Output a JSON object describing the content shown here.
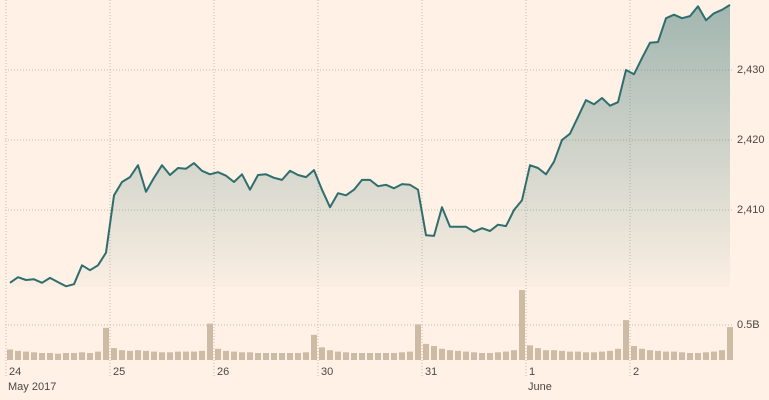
{
  "chart_data": {
    "type": "line",
    "categories": [
      "24",
      null,
      null,
      null,
      null,
      null,
      null,
      null,
      null,
      null,
      null,
      null,
      null,
      "25",
      null,
      null,
      null,
      null,
      null,
      null,
      null,
      null,
      null,
      null,
      null,
      null,
      "26",
      null,
      null,
      null,
      null,
      null,
      null,
      null,
      null,
      null,
      null,
      null,
      null,
      "30",
      null,
      null,
      null,
      null,
      null,
      null,
      null,
      null,
      null,
      null,
      null,
      null,
      "31",
      null,
      null,
      null,
      null,
      null,
      null,
      null,
      null,
      null,
      null,
      null,
      null,
      "1",
      null,
      null,
      null,
      null,
      null,
      null,
      null,
      null,
      null,
      null,
      null,
      null,
      "2",
      null,
      null,
      null,
      null,
      null,
      null,
      null,
      null,
      null,
      null,
      null,
      null
    ],
    "group_labels": [
      "May 2017",
      null,
      null,
      null,
      null,
      null,
      null,
      null,
      null,
      null,
      null,
      null,
      null,
      null,
      null,
      null,
      null,
      null,
      null,
      null,
      null,
      null,
      null,
      null,
      null,
      null,
      null,
      null,
      null,
      null,
      null,
      null,
      null,
      null,
      null,
      null,
      null,
      null,
      null,
      null,
      null,
      null,
      null,
      null,
      null,
      null,
      null,
      null,
      null,
      null,
      null,
      null,
      null,
      null,
      null,
      null,
      null,
      null,
      null,
      null,
      null,
      null,
      null,
      null,
      null,
      "June",
      null,
      null,
      null,
      null,
      null,
      null,
      null,
      null,
      null,
      null,
      null,
      null,
      null,
      null,
      null,
      null,
      null,
      null,
      null,
      null,
      null,
      null,
      null,
      null,
      null
    ],
    "series": [
      {
        "color": "#2f6e6e",
        "values": [
          2399.6,
          2400.4,
          2400.0,
          2400.1,
          2399.6,
          2400.3,
          2399.7,
          2399.1,
          2399.4,
          2402.1,
          2401.4,
          2402.1,
          2403.9,
          2412.1,
          2414.0,
          2414.7,
          2416.4,
          2412.6,
          2414.6,
          2416.4,
          2415.0,
          2416.0,
          2415.9,
          2416.7,
          2415.6,
          2415.1,
          2415.4,
          2414.9,
          2414.0,
          2415.1,
          2412.9,
          2415.0,
          2415.1,
          2414.6,
          2414.3,
          2415.6,
          2415.0,
          2414.7,
          2415.7,
          2412.9,
          2410.4,
          2412.4,
          2412.1,
          2412.9,
          2414.3,
          2414.3,
          2413.4,
          2413.6,
          2413.1,
          2413.7,
          2413.6,
          2412.9,
          2406.4,
          2406.3,
          2410.4,
          2407.6,
          2407.6,
          2407.6,
          2406.9,
          2407.4,
          2407.0,
          2407.9,
          2407.7,
          2410.0,
          2411.4,
          2416.4,
          2416.0,
          2415.1,
          2416.9,
          2420.0,
          2420.9,
          2423.3,
          2425.7,
          2425.1,
          2426.0,
          2424.9,
          2425.4,
          2430.0,
          2429.4,
          2431.7,
          2433.9,
          2434.0,
          2437.4,
          2437.9,
          2437.4,
          2437.7,
          2439.1,
          2437.1,
          2438.1,
          2438.6,
          2439.3
        ]
      },
      {
        "type": "bar",
        "axis": "y2",
        "color": "#cdbba5",
        "values": [
          0.15,
          0.13,
          0.12,
          0.11,
          0.1,
          0.1,
          0.09,
          0.1,
          0.1,
          0.11,
          0.1,
          0.12,
          0.46,
          0.17,
          0.14,
          0.13,
          0.14,
          0.13,
          0.12,
          0.11,
          0.11,
          0.12,
          0.12,
          0.12,
          0.13,
          0.52,
          0.16,
          0.13,
          0.12,
          0.11,
          0.11,
          0.1,
          0.1,
          0.1,
          0.1,
          0.1,
          0.1,
          0.11,
          0.36,
          0.18,
          0.14,
          0.12,
          0.11,
          0.1,
          0.1,
          0.1,
          0.1,
          0.1,
          0.1,
          0.11,
          0.12,
          0.51,
          0.23,
          0.2,
          0.16,
          0.14,
          0.13,
          0.12,
          0.11,
          0.1,
          0.1,
          0.11,
          0.12,
          0.14,
          1.0,
          0.21,
          0.17,
          0.14,
          0.14,
          0.13,
          0.12,
          0.12,
          0.11,
          0.11,
          0.12,
          0.13,
          0.16,
          0.57,
          0.2,
          0.16,
          0.14,
          0.13,
          0.12,
          0.12,
          0.11,
          0.1,
          0.1,
          0.11,
          0.12,
          0.14,
          0.47
        ]
      }
    ],
    "ylim": [
      2399,
      2440
    ],
    "yticks": [
      {
        "value": 2410,
        "label": "2,410"
      },
      {
        "value": 2420,
        "label": "2,420"
      },
      {
        "value": 2430,
        "label": "2,430"
      }
    ],
    "y2lim": [
      0,
      1.0
    ],
    "y2ticks": [
      {
        "value": 0.5,
        "label": "0.5B"
      }
    ],
    "grid": true
  }
}
